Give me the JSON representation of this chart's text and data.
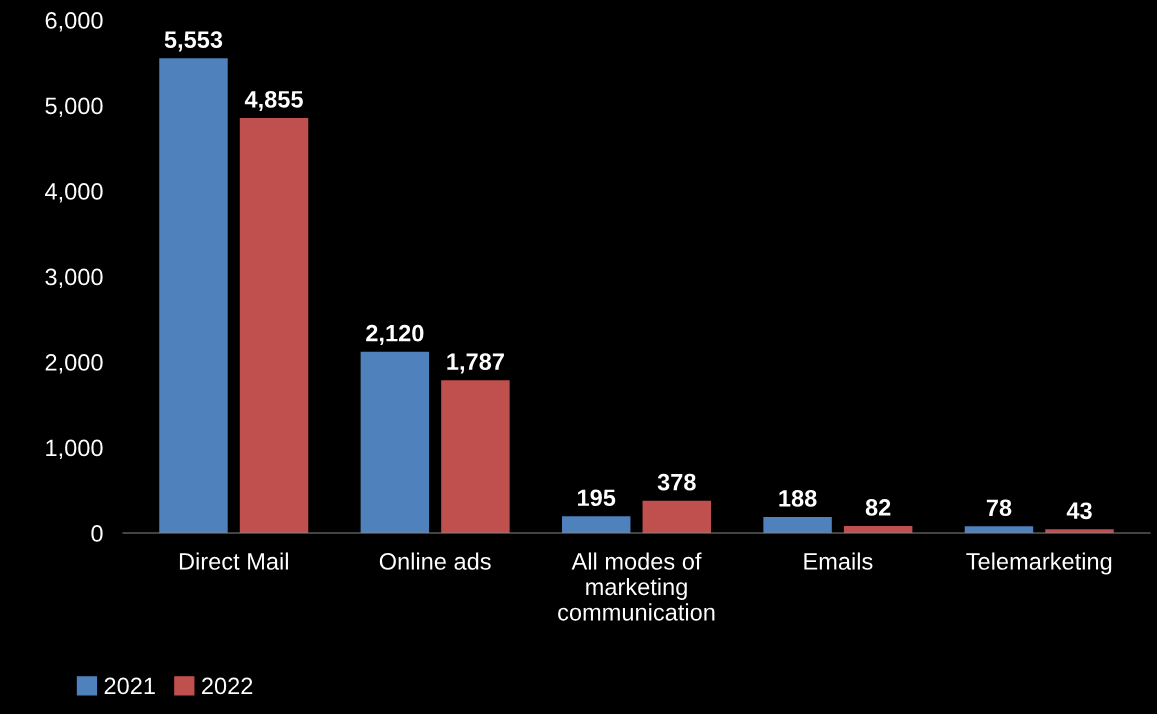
{
  "chart_data": {
    "type": "bar",
    "categories": [
      "Direct Mail",
      "Online ads",
      "All modes of\nmarketing\ncommunication",
      "Emails",
      "Telemarketing"
    ],
    "series": [
      {
        "name": "2021",
        "color": "#4f81bd",
        "values": [
          5553,
          2120,
          195,
          188,
          78
        ]
      },
      {
        "name": "2022",
        "color": "#c0504d",
        "values": [
          4855,
          1787,
          378,
          82,
          43
        ]
      }
    ],
    "ylim": [
      0,
      6000
    ],
    "yticks": [
      {
        "value": 0,
        "label": "0"
      },
      {
        "value": 1000,
        "label": "1,000"
      },
      {
        "value": 2000,
        "label": "2,000"
      },
      {
        "value": 3000,
        "label": "3,000"
      },
      {
        "value": 4000,
        "label": "4,000"
      },
      {
        "value": 5000,
        "label": "5,000"
      },
      {
        "value": 6000,
        "label": "6,000"
      }
    ],
    "value_labels": [
      [
        "5,553",
        "2,120",
        "195",
        "188",
        "78"
      ],
      [
        "4,855",
        "1,787",
        "378",
        "82",
        "43"
      ]
    ],
    "legend": "bottom left"
  }
}
